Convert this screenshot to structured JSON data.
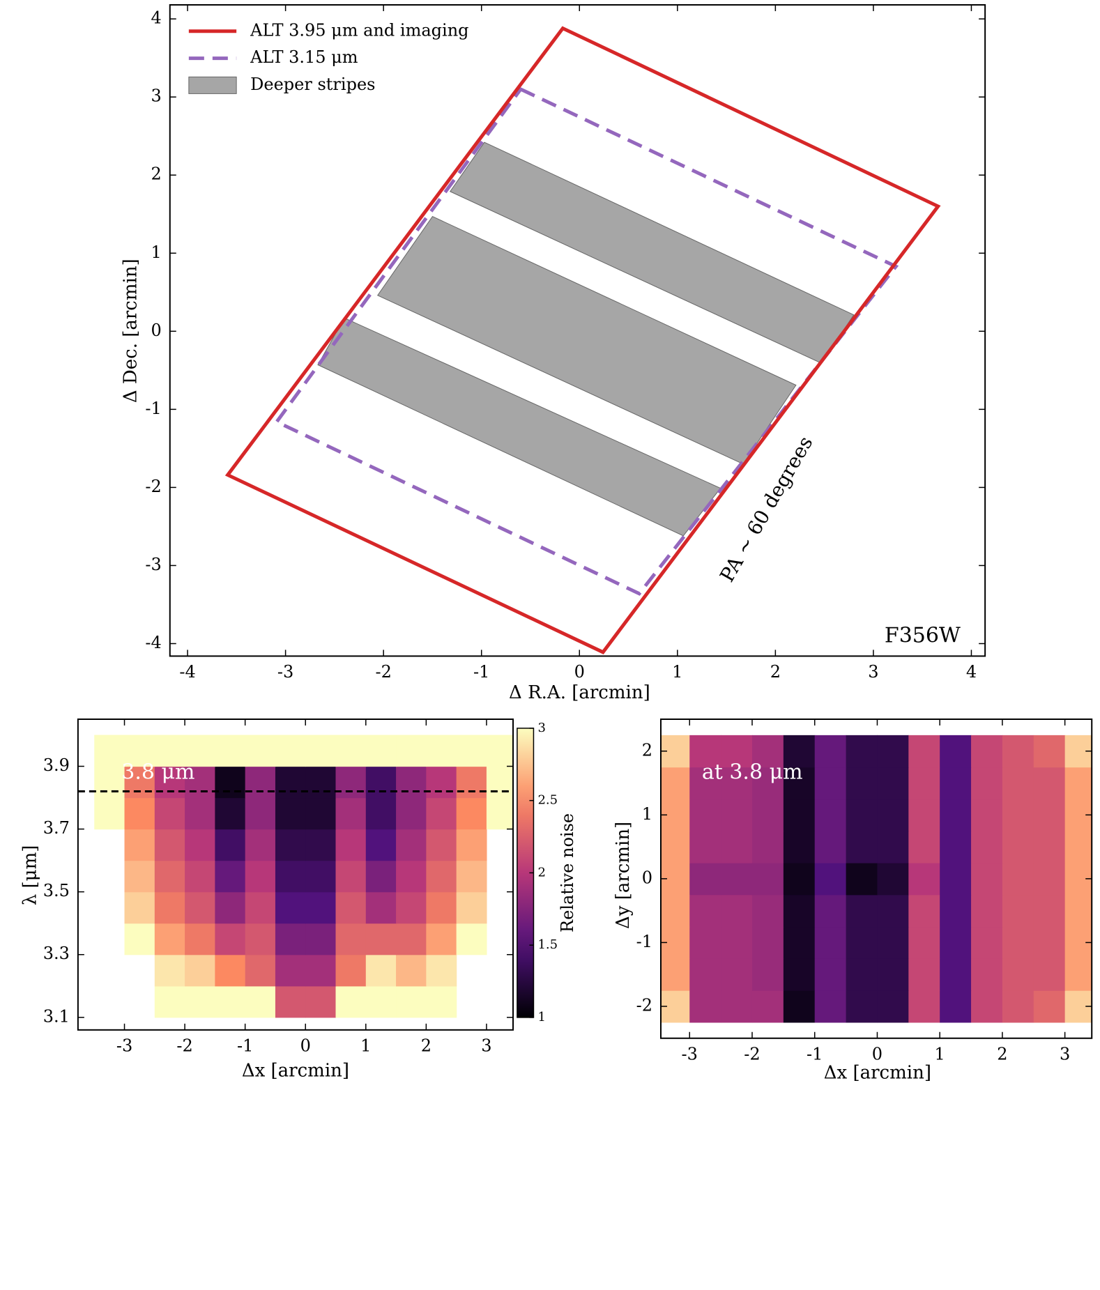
{
  "chart_data": [
    {
      "type": "map",
      "xlabel": "Δ R.A. [arcmin]",
      "ylabel": "Δ Dec. [arcmin]",
      "xlim": [
        -4.18,
        4.14
      ],
      "ylim": [
        -4.16,
        4.18
      ],
      "xticks": [
        -4,
        -3,
        -2,
        -1,
        0,
        1,
        2,
        3,
        4
      ],
      "yticks": [
        -4,
        -3,
        -2,
        -1,
        0,
        1,
        2,
        3,
        4
      ],
      "legend": "upper left",
      "series": [
        {
          "name": "Deeper stripes",
          "color": "#808080",
          "style": "fill",
          "x": [
            -0.97,
            2.8,
            2.47,
            -1.32,
            null,
            -1.5,
            2.21,
            1.67,
            -2.06,
            null,
            -2.4,
            1.44,
            1.06,
            -2.67
          ],
          "y": [
            2.42,
            0.21,
            -0.41,
            1.79,
            null,
            1.47,
            -0.69,
            -1.7,
            0.46,
            null,
            0.17,
            -2.01,
            -2.62,
            -0.43
          ]
        },
        {
          "name": "ALT 3.15 μm",
          "color": "#9467bd",
          "style": "dashed",
          "x": [
            -0.6,
            3.23,
            0.61,
            -3.09
          ],
          "y": [
            3.1,
            0.83,
            -3.36,
            -1.16
          ]
        },
        {
          "name": "ALT 3.95 μm and imaging",
          "color": "#d62728",
          "style": "solid",
          "x": [
            -0.17,
            3.66,
            0.24,
            -3.59
          ],
          "y": [
            3.88,
            1.6,
            -4.11,
            -1.84
          ]
        }
      ],
      "annotations": [
        "PA ∼ 60 degrees",
        "F356W"
      ]
    },
    {
      "type": "heatmap",
      "xlabel": "Δx [arcmin]",
      "ylabel": "λ [μm]",
      "xlim": [
        -3.77,
        3.44
      ],
      "ylim": [
        3.06,
        4.05
      ],
      "xticks": [
        -3,
        -2,
        -1,
        0,
        1,
        2,
        3
      ],
      "yticks": [
        3.1,
        3.3,
        3.5,
        3.7,
        3.9
      ],
      "colormap": "magma",
      "clim": [
        1,
        3
      ],
      "cbar_ticks": [
        1,
        1.5,
        2,
        2.5,
        3
      ],
      "cbar_label": "Relative noise",
      "hline": 3.82,
      "annotation": "3.8 μm",
      "x": [
        -3.25,
        -2.75,
        -2.25,
        -1.75,
        -1.25,
        -0.75,
        -0.25,
        0.25,
        0.75,
        1.25,
        1.75,
        2.25,
        2.75,
        3.25
      ],
      "y": [
        3.15,
        3.25,
        3.35,
        3.45,
        3.55,
        3.65,
        3.75,
        3.85,
        3.95
      ],
      "z": [
        [
          null,
          null,
          3,
          3,
          3,
          3,
          2.2,
          2.2,
          3,
          3,
          3,
          3,
          null,
          null
        ],
        [
          null,
          null,
          2.9,
          2.8,
          2.5,
          2.3,
          1.9,
          1.9,
          2.4,
          2.9,
          2.7,
          2.9,
          null,
          null
        ],
        [
          null,
          3,
          2.6,
          2.4,
          2.1,
          2.2,
          1.7,
          1.7,
          2.3,
          2.3,
          2.3,
          2.6,
          3,
          null
        ],
        [
          null,
          2.8,
          2.4,
          2.2,
          1.8,
          2.1,
          1.5,
          1.5,
          2.2,
          1.9,
          2.1,
          2.4,
          2.8,
          null
        ],
        [
          null,
          2.7,
          2.3,
          2.1,
          1.6,
          2.0,
          1.4,
          1.4,
          2.1,
          1.7,
          2.0,
          2.3,
          2.7,
          null
        ],
        [
          null,
          2.6,
          2.2,
          2.0,
          1.4,
          1.9,
          1.3,
          1.3,
          2.0,
          1.5,
          1.9,
          2.2,
          2.6,
          null
        ],
        [
          3,
          2.5,
          2.1,
          1.9,
          1.2,
          1.8,
          1.2,
          1.2,
          1.9,
          1.4,
          1.8,
          2.1,
          2.5,
          3
        ],
        [
          3,
          2.4,
          2.0,
          1.9,
          1.1,
          1.8,
          1.2,
          1.2,
          1.8,
          1.4,
          1.8,
          2.0,
          2.4,
          3
        ],
        [
          3,
          3,
          3,
          3,
          3,
          3,
          3,
          3,
          3,
          3,
          3,
          3,
          3,
          3
        ]
      ]
    },
    {
      "type": "heatmap",
      "xlabel": "Δx [arcmin]",
      "ylabel": "Δy [arcmin]",
      "xlim": [
        -3.46,
        3.43
      ],
      "ylim": [
        -2.5,
        2.5
      ],
      "xticks": [
        -3,
        -2,
        -1,
        0,
        1,
        2,
        3
      ],
      "yticks": [
        -2,
        -1,
        0,
        1,
        2
      ],
      "colormap": "magma",
      "clim": [
        1,
        3
      ],
      "annotation": "at 3.8 μm",
      "x": [
        -3.25,
        -2.75,
        -2.25,
        -1.75,
        -1.25,
        -0.75,
        -0.25,
        0.25,
        0.75,
        1.25,
        1.75,
        2.25,
        2.75,
        3.25
      ],
      "y": [
        -2,
        -1.5,
        -1,
        -0.5,
        0,
        0.5,
        1,
        1.5,
        2
      ],
      "z": [
        [
          2.8,
          1.9,
          1.9,
          1.9,
          1.1,
          1.6,
          1.3,
          1.3,
          2.1,
          1.5,
          2.1,
          2.2,
          2.3,
          2.8
        ],
        [
          2.6,
          1.9,
          1.9,
          1.85,
          1.15,
          1.6,
          1.3,
          1.3,
          2.1,
          1.5,
          2.1,
          2.2,
          2.2,
          2.6
        ],
        [
          2.6,
          1.9,
          1.9,
          1.85,
          1.15,
          1.6,
          1.3,
          1.3,
          2.1,
          1.5,
          2.1,
          2.2,
          2.2,
          2.6
        ],
        [
          2.6,
          1.9,
          1.9,
          1.85,
          1.15,
          1.6,
          1.3,
          1.3,
          2.1,
          1.5,
          2.1,
          2.2,
          2.2,
          2.6
        ],
        [
          2.6,
          1.8,
          1.8,
          1.8,
          1.1,
          1.5,
          1.1,
          1.2,
          2.0,
          1.5,
          2.1,
          2.2,
          2.2,
          2.6
        ],
        [
          2.6,
          1.9,
          1.9,
          1.85,
          1.15,
          1.6,
          1.3,
          1.3,
          2.1,
          1.5,
          2.1,
          2.2,
          2.2,
          2.6
        ],
        [
          2.6,
          1.9,
          1.9,
          1.85,
          1.15,
          1.6,
          1.3,
          1.3,
          2.1,
          1.5,
          2.1,
          2.2,
          2.2,
          2.6
        ],
        [
          2.6,
          1.9,
          1.9,
          1.85,
          1.15,
          1.6,
          1.3,
          1.3,
          2.1,
          1.5,
          2.1,
          2.2,
          2.2,
          2.6
        ],
        [
          2.8,
          2.0,
          2.0,
          1.9,
          1.2,
          1.6,
          1.3,
          1.3,
          2.1,
          1.5,
          2.1,
          2.2,
          2.3,
          2.8
        ]
      ]
    }
  ]
}
